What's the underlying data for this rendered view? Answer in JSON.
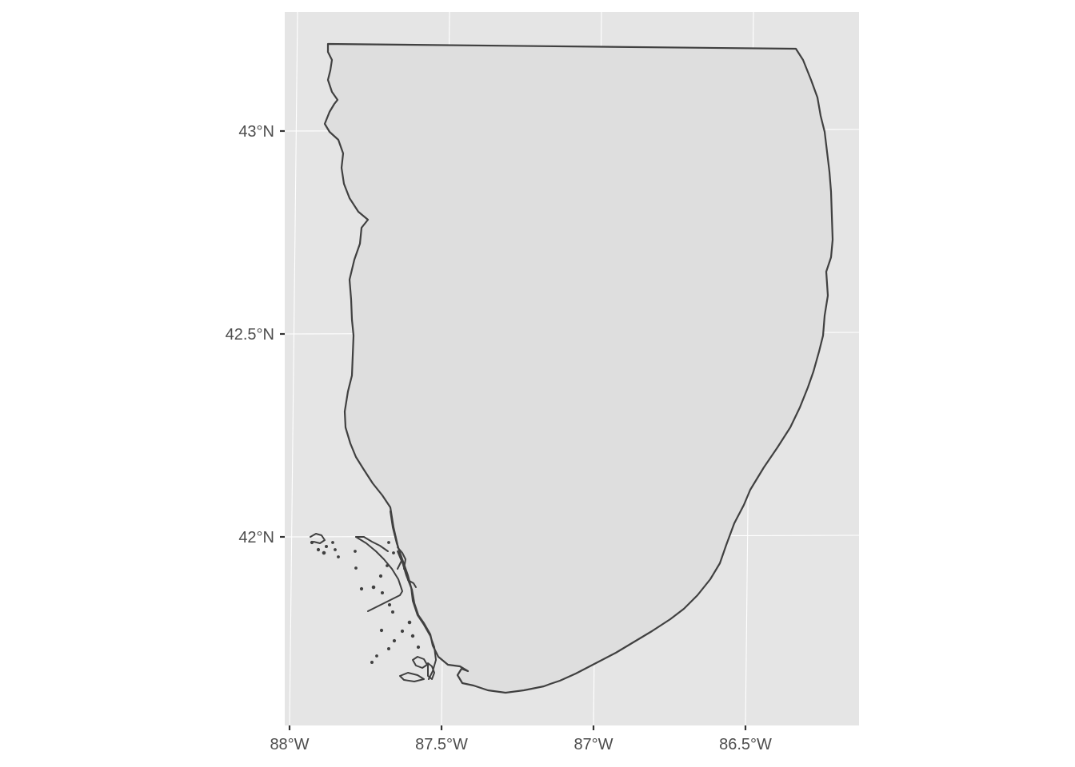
{
  "map": {
    "x_ticks": [
      {
        "lon": -88.0,
        "label": "88°W"
      },
      {
        "lon": -87.5,
        "label": "87.5°W"
      },
      {
        "lon": -87.0,
        "label": "87°W"
      },
      {
        "lon": -86.5,
        "label": "86.5°W"
      }
    ],
    "y_ticks": [
      {
        "lat": 43.0,
        "label": "43°N"
      },
      {
        "lat": 42.5,
        "label": "42.5°N"
      },
      {
        "lat": 42.0,
        "label": "42°N"
      }
    ],
    "colors": {
      "panel_background": "#e5e5e5",
      "grid": "#ffffff",
      "water_fill": "#dedede",
      "outline": "#404040",
      "axis_text": "#4d4d4d"
    }
  }
}
